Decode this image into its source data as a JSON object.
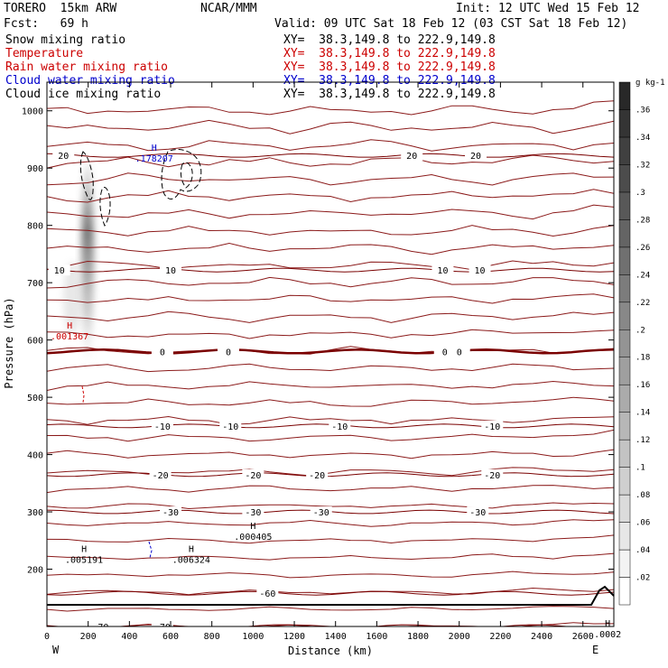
{
  "header": {
    "model": "TORERO  15km ARW",
    "org": "NCAR/MMM",
    "init": "Init: 12 UTC Wed 15 Feb 12",
    "fcst": "Fcst:   69 h",
    "valid": "Valid: 09 UTC Sat 18 Feb 12 (03 CST Sat 18 Feb 12)"
  },
  "fields": [
    {
      "name": "Snow mixing ratio",
      "xy": "XY=  38.3,149.8 to 222.9,149.8",
      "color": "#000000"
    },
    {
      "name": "Temperature",
      "xy": "XY=  38.3,149.8 to 222.9,149.8",
      "color": "#cc0000"
    },
    {
      "name": "Rain water mixing ratio",
      "xy": "XY=  38.3,149.8 to 222.9,149.8",
      "color": "#cc0000"
    },
    {
      "name": "Cloud water mixing ratio",
      "xy": "XY=  38.3,149.8 to 222.9,149.8",
      "color": "#0000cc"
    },
    {
      "name": "Cloud ice mixing ratio",
      "xy": "XY=  38.3,149.8 to 222.9,149.8",
      "color": "#000000"
    }
  ],
  "chart_data": {
    "type": "cross-section contour",
    "xlabel": "Distance (km)",
    "ylabel": "Pressure (hPa)",
    "xlim": [
      0,
      2750
    ],
    "ylim": [
      1050,
      100
    ],
    "xticks": [
      0,
      200,
      400,
      600,
      800,
      1000,
      1200,
      1400,
      1600,
      1800,
      2000,
      2200,
      2400,
      2600
    ],
    "yticks": [
      200,
      300,
      400,
      500,
      600,
      700,
      800,
      900,
      1000
    ],
    "endpoints": {
      "left": "W",
      "right": "E"
    },
    "colorbar": {
      "unit": "g kg-1",
      "labels": [
        ".02",
        ".04",
        ".06",
        ".08",
        ".1",
        ".12",
        ".14",
        ".16",
        ".18",
        ".2",
        ".22",
        ".24",
        ".26",
        ".28",
        ".3",
        ".32",
        ".34",
        ".36"
      ]
    },
    "temperature_contours": [
      {
        "pressure": 100,
        "labels": [
          {
            "x": 260,
            "text": "-70"
          },
          {
            "x": 560,
            "text": "-70"
          }
        ]
      },
      {
        "pressure": 158,
        "labels": [
          {
            "x": 1070,
            "text": "-60"
          }
        ]
      },
      {
        "pressure": 300,
        "labels": [
          {
            "x": 600,
            "text": "-30"
          },
          {
            "x": 1000,
            "text": "-30"
          },
          {
            "x": 1330,
            "text": "-30"
          },
          {
            "x": 2090,
            "text": "-30"
          }
        ]
      },
      {
        "pressure": 365,
        "labels": [
          {
            "x": 550,
            "text": "-20"
          },
          {
            "x": 1000,
            "text": "-20"
          },
          {
            "x": 1310,
            "text": "-20"
          },
          {
            "x": 2160,
            "text": "-20"
          }
        ]
      },
      {
        "pressure": 450,
        "labels": [
          {
            "x": 560,
            "text": "-10"
          },
          {
            "x": 890,
            "text": "-10"
          },
          {
            "x": 1420,
            "text": "-10"
          },
          {
            "x": 2160,
            "text": "-10"
          }
        ]
      },
      {
        "pressure": 580,
        "labels": [
          {
            "x": 560,
            "text": "0"
          },
          {
            "x": 880,
            "text": "0"
          },
          {
            "x": 1930,
            "text": "0"
          },
          {
            "x": 2000,
            "text": "0"
          }
        ]
      },
      {
        "pressure": 722,
        "labels": [
          {
            "x": 60,
            "text": "10"
          },
          {
            "x": 600,
            "text": "10"
          },
          {
            "x": 1920,
            "text": "10"
          },
          {
            "x": 2100,
            "text": "10"
          }
        ]
      },
      {
        "pressure": 922,
        "labels": [
          {
            "x": 80,
            "text": "20"
          },
          {
            "x": 1770,
            "text": "20"
          },
          {
            "x": 2080,
            "text": "20"
          }
        ]
      }
    ],
    "maxima": [
      {
        "field": "Cloud ice mixing ratio",
        "x": 2720,
        "pressure": 100,
        "value": ".0002"
      },
      {
        "field": "Snow mixing ratio",
        "x": 180,
        "pressure": 230,
        "value": ".005191"
      },
      {
        "field": "Snow mixing ratio",
        "x": 700,
        "pressure": 230,
        "value": ".006324"
      },
      {
        "field": "Snow mixing ratio",
        "x": 1000,
        "pressure": 270,
        "value": ".000405"
      },
      {
        "field": "Rain water mixing ratio",
        "x": 110,
        "pressure": 620,
        "value": ".001367"
      },
      {
        "field": "Cloud water mixing ratio",
        "x": 520,
        "pressure": 930,
        "value": ".178207"
      }
    ]
  }
}
